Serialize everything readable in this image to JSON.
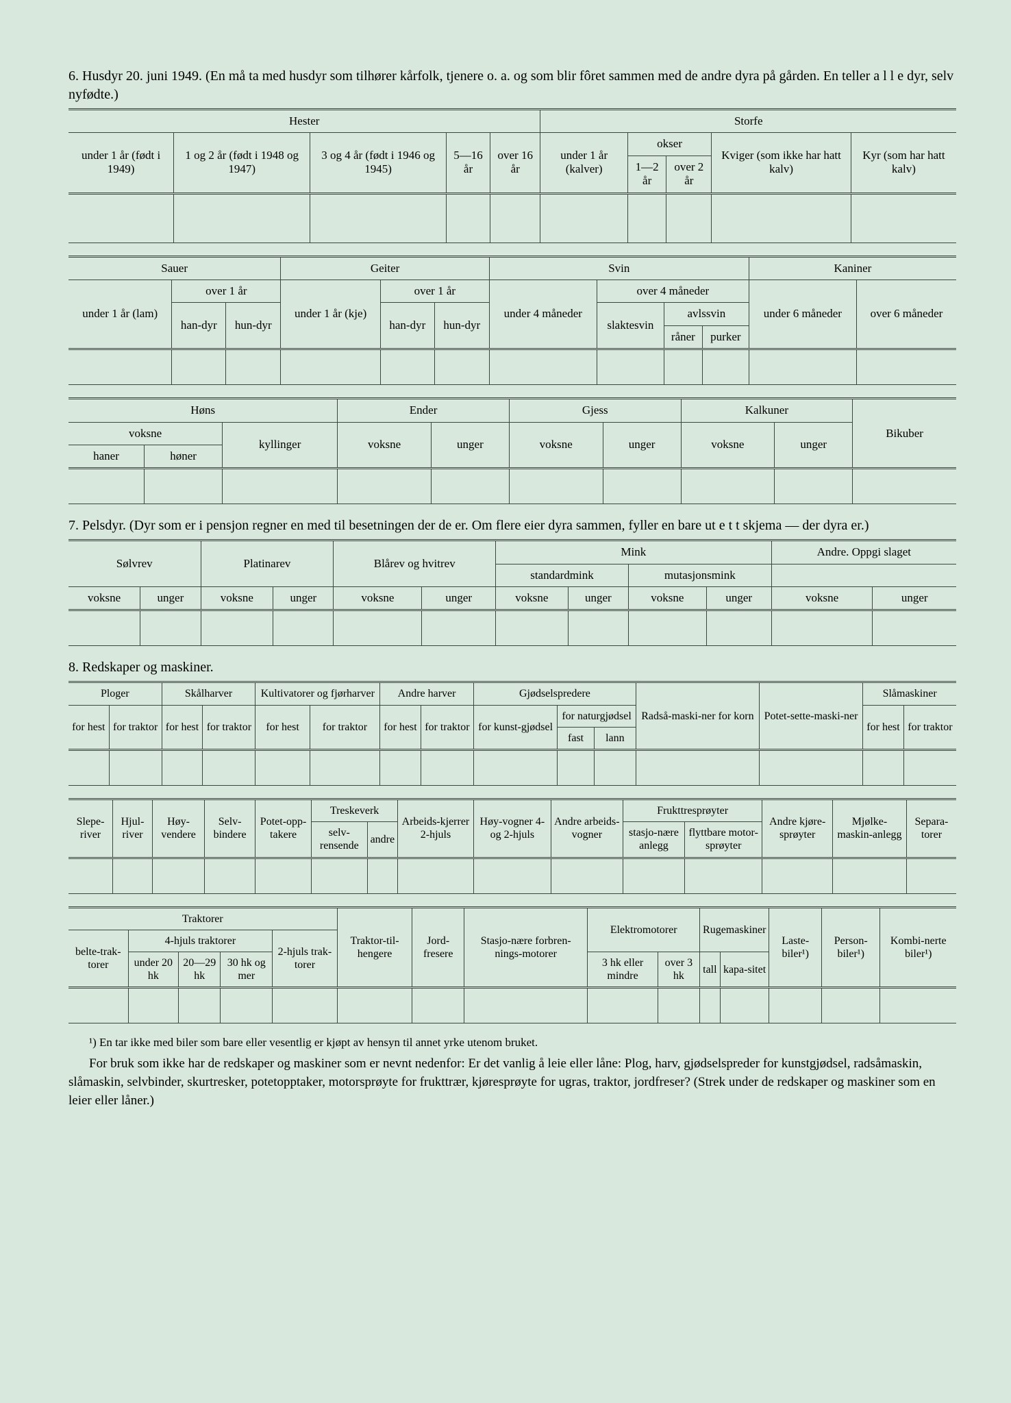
{
  "section6": {
    "title": "6. Husdyr 20. juni 1949. (En må ta med husdyr som tilhører kårfolk, tjenere o. a. og som blir fôret sammen med de andre dyra på gården. En teller a l l e dyr, selv nyfødte.)",
    "t1": {
      "hester": "Hester",
      "storfe": "Storfe",
      "c1": "under 1 år (født i 1949)",
      "c2": "1 og 2 år (født i 1948 og 1947)",
      "c3": "3 og 4 år (født i 1946 og 1945)",
      "c4": "5—16 år",
      "c5": "over 16 år",
      "c6": "under 1 år (kalver)",
      "okser": "okser",
      "c7": "1—2 år",
      "c8": "over 2 år",
      "c9": "Kviger (som ikke har hatt kalv)",
      "c10": "Kyr (som har hatt kalv)"
    },
    "t2": {
      "sauer": "Sauer",
      "geiter": "Geiter",
      "svin": "Svin",
      "kaniner": "Kaniner",
      "under1lam": "under 1 år (lam)",
      "over1": "over 1 år",
      "handyr": "han-dyr",
      "hundyr": "hun-dyr",
      "under1kje": "under 1 år (kje)",
      "under4m": "under 4 måneder",
      "over4m": "over 4 måneder",
      "slaktesvin": "slaktesvin",
      "avlssvin": "avlssvin",
      "raner": "råner",
      "purker": "purker",
      "under6m": "under 6 måneder",
      "over6m": "over 6 måneder"
    },
    "t3": {
      "hons": "Høns",
      "ender": "Ender",
      "gjess": "Gjess",
      "kalkuner": "Kalkuner",
      "bikuber": "Bikuber",
      "voksne": "voksne",
      "haner": "haner",
      "honer": "høner",
      "kyllinger": "kyllinger",
      "unger": "unger"
    }
  },
  "section7": {
    "title": "7. Pelsdyr. (Dyr som er i pensjon regner en med til besetningen der de er. Om flere eier dyra sammen, fyller en bare ut e t t skjema — der dyra er.)",
    "solvrev": "Sølvrev",
    "platinarev": "Platinarev",
    "blarev": "Blårev og hvitrev",
    "mink": "Mink",
    "standardmink": "standardmink",
    "mutasjonsmink": "mutasjonsmink",
    "andre": "Andre. Oppgi slaget",
    "voksne": "voksne",
    "unger": "unger"
  },
  "section8": {
    "title": "8. Redskaper og maskiner.",
    "t1": {
      "ploger": "Ploger",
      "skalharver": "Skålharver",
      "kultivatorer": "Kultivatorer og fjørharver",
      "andreharver": "Andre harver",
      "gjodsel": "Gjødselspredere",
      "radsa": "Radså-maski-ner for korn",
      "potet": "Potet-sette-maski-ner",
      "slamaskiner": "Slåmaskiner",
      "forhest": "for hest",
      "fortraktor": "for traktor",
      "forkunst": "for kunst-gjødsel",
      "fornatur": "for naturgjødsel",
      "fast": "fast",
      "lann": "lann"
    },
    "t2": {
      "sleperiver": "Slepe-river",
      "hjulriver": "Hjul-river",
      "hoyvendere": "Høy-vendere",
      "selvbindere": "Selv-bindere",
      "potetopp": "Potet-opp-takere",
      "treskeverk": "Treskeverk",
      "selvrensende": "selv-rensende",
      "andre": "andre",
      "arbeids": "Arbeids-kjerrer 2-hjuls",
      "hoyvogner": "Høy-vogner 4- og 2-hjuls",
      "andrevogner": "Andre arbeids-vogner",
      "frukttre": "Frukttresprøyter",
      "stasjonare": "stasjo-nære anlegg",
      "flyttbare": "flyttbare motor-sprøyter",
      "andrekjore": "Andre kjøre-sprøyter",
      "mjolke": "Mjølke-maskin-anlegg",
      "separa": "Separa-torer"
    },
    "t3": {
      "traktorer": "Traktorer",
      "beltetrak": "belte-trak-torer",
      "fourhjuls": "4-hjuls traktorer",
      "under20": "under 20 hk",
      "hk2029": "20—29 hk",
      "hk30": "30 hk og mer",
      "tohjuls": "2-hjuls trak-torer",
      "traktortil": "Traktor-til-hengere",
      "jordfresere": "Jord-fresere",
      "stasjonere": "Stasjo-nære forbren-nings-motorer",
      "elektro": "Elektromotorer",
      "hk3eller": "3 hk eller mindre",
      "over3hk": "over 3 hk",
      "ruge": "Rugemaskiner",
      "tall": "tall",
      "kapasitet": "kapa-sitet",
      "laste": "Laste-biler¹)",
      "person": "Person-biler¹)",
      "kombi": "Kombi-nerte biler¹)"
    }
  },
  "footnote": "¹) En tar ikke med biler som bare eller vesentlig er kjøpt av hensyn til annet yrke utenom bruket.",
  "bottom": "For bruk som ikke har de redskaper og maskiner som er nevnt nedenfor: Er det vanlig å leie eller låne: Plog, harv, gjødselspreder for kunstgjødsel, radsåmaskin, slåmaskin, selvbinder, skurtresker, potetopptaker, motorsprøyte for frukttrær, kjøresprøyte for ugras, traktor, jordfreser? (Strek under de redskaper og maskiner som en leier eller låner.)"
}
